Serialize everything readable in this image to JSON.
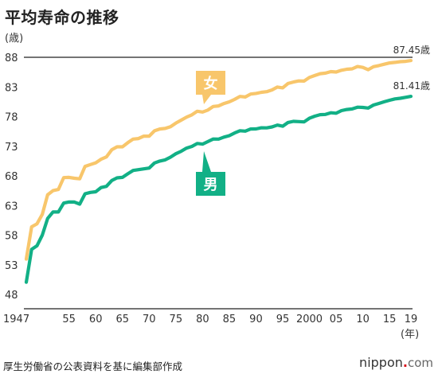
{
  "chart_data": {
    "type": "line",
    "title": "平均寿命の推移",
    "ylabel": "(歳)",
    "xunit": "(年)",
    "ylim": [
      48,
      88
    ],
    "xlim": [
      1947,
      2019
    ],
    "yticks": [
      48,
      53,
      58,
      63,
      68,
      73,
      78,
      83,
      88
    ],
    "xticks": [
      {
        "value": 1947,
        "label": "1947"
      },
      {
        "value": 1955,
        "label": "55"
      },
      {
        "value": 1960,
        "label": "60"
      },
      {
        "value": 1965,
        "label": "65"
      },
      {
        "value": 1970,
        "label": "70"
      },
      {
        "value": 1975,
        "label": "75"
      },
      {
        "value": 1980,
        "label": "80"
      },
      {
        "value": 1985,
        "label": "85"
      },
      {
        "value": 1990,
        "label": "90"
      },
      {
        "value": 1995,
        "label": "95"
      },
      {
        "value": 2000,
        "label": "2000"
      },
      {
        "value": 2005,
        "label": "05"
      },
      {
        "value": 2010,
        "label": "10"
      },
      {
        "value": 2015,
        "label": "15"
      },
      {
        "value": 2019,
        "label": "19"
      }
    ],
    "reference_line": 88,
    "series": [
      {
        "name": "女",
        "color": "#f8c66b",
        "end_label": "87.45歳",
        "x": [
          1947,
          1948,
          1949,
          1950,
          1951,
          1952,
          1953,
          1954,
          1955,
          1956,
          1957,
          1958,
          1959,
          1960,
          1961,
          1962,
          1963,
          1964,
          1965,
          1966,
          1967,
          1968,
          1969,
          1970,
          1971,
          1972,
          1973,
          1974,
          1975,
          1976,
          1977,
          1978,
          1979,
          1980,
          1981,
          1982,
          1983,
          1984,
          1985,
          1986,
          1987,
          1988,
          1989,
          1990,
          1991,
          1992,
          1993,
          1994,
          1995,
          1996,
          1997,
          1998,
          1999,
          2000,
          2001,
          2002,
          2003,
          2004,
          2005,
          2006,
          2007,
          2008,
          2009,
          2010,
          2011,
          2012,
          2013,
          2014,
          2015,
          2016,
          2017,
          2018,
          2019
        ],
        "values": [
          53.96,
          59.4,
          59.9,
          61.5,
          64.8,
          65.5,
          65.7,
          67.7,
          67.75,
          67.6,
          67.5,
          69.6,
          69.9,
          70.2,
          70.8,
          71.2,
          72.4,
          72.9,
          72.9,
          73.6,
          74.2,
          74.3,
          74.7,
          74.7,
          75.6,
          75.9,
          76.0,
          76.3,
          76.9,
          77.4,
          77.9,
          78.3,
          78.9,
          78.76,
          79.1,
          79.7,
          79.8,
          80.2,
          80.48,
          80.9,
          81.4,
          81.3,
          81.8,
          81.9,
          82.1,
          82.2,
          82.5,
          82.98,
          82.85,
          83.59,
          83.82,
          84.01,
          83.99,
          84.6,
          84.93,
          85.23,
          85.33,
          85.59,
          85.52,
          85.81,
          85.99,
          86.05,
          86.44,
          86.3,
          85.9,
          86.41,
          86.61,
          86.83,
          87.05,
          87.14,
          87.26,
          87.32,
          87.45
        ]
      },
      {
        "name": "男",
        "color": "#12b086",
        "end_label": "81.41歳",
        "x": [
          1947,
          1948,
          1949,
          1950,
          1951,
          1952,
          1953,
          1954,
          1955,
          1956,
          1957,
          1958,
          1959,
          1960,
          1961,
          1962,
          1963,
          1964,
          1965,
          1966,
          1967,
          1968,
          1969,
          1970,
          1971,
          1972,
          1973,
          1974,
          1975,
          1976,
          1977,
          1978,
          1979,
          1980,
          1981,
          1982,
          1983,
          1984,
          1985,
          1986,
          1987,
          1988,
          1989,
          1990,
          1991,
          1992,
          1993,
          1994,
          1995,
          1996,
          1997,
          1998,
          1999,
          2000,
          2001,
          2002,
          2003,
          2004,
          2005,
          2006,
          2007,
          2008,
          2009,
          2010,
          2011,
          2012,
          2013,
          2014,
          2015,
          2016,
          2017,
          2018,
          2019
        ],
        "values": [
          50.06,
          55.6,
          56.2,
          58.0,
          60.8,
          61.9,
          61.9,
          63.41,
          63.6,
          63.59,
          63.24,
          64.98,
          65.21,
          65.32,
          66.03,
          66.23,
          67.21,
          67.67,
          67.74,
          68.35,
          68.91,
          69.05,
          69.18,
          69.31,
          70.17,
          70.5,
          70.7,
          71.16,
          71.73,
          72.15,
          72.69,
          72.97,
          73.46,
          73.35,
          73.79,
          74.22,
          74.2,
          74.54,
          74.78,
          75.23,
          75.61,
          75.54,
          75.91,
          75.92,
          76.11,
          76.09,
          76.25,
          76.57,
          76.38,
          77.01,
          77.19,
          77.16,
          77.1,
          77.72,
          78.07,
          78.32,
          78.36,
          78.64,
          78.56,
          79.0,
          79.19,
          79.29,
          79.59,
          79.55,
          79.44,
          79.94,
          80.21,
          80.5,
          80.75,
          80.98,
          81.09,
          81.25,
          81.41
        ]
      }
    ]
  },
  "source": "厚生労働省の公表資料を基に編集部作成",
  "logo": {
    "name": "nippon",
    "dot": ".",
    "suffix": "com"
  }
}
